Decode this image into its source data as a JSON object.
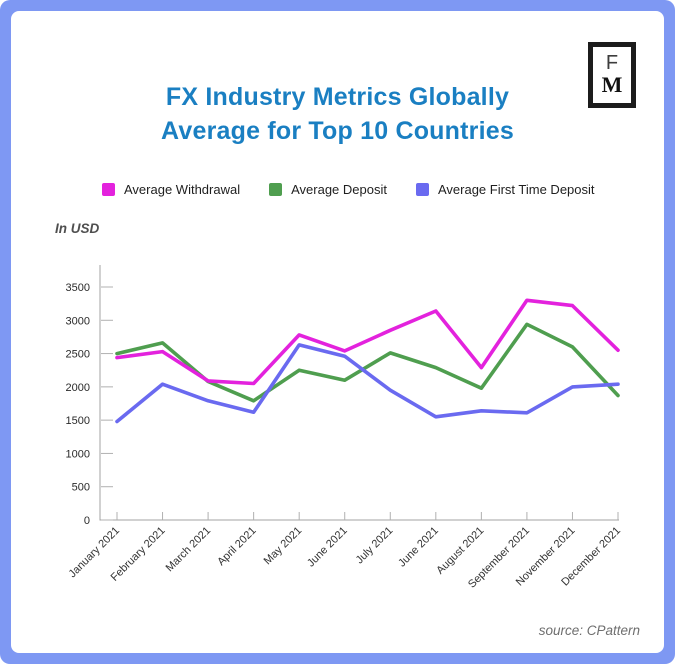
{
  "frame": {
    "border_color": "#7e98f3",
    "card_color": "#ffffff"
  },
  "logo": {
    "top_letter": "F",
    "bottom_letter": "M"
  },
  "header": {
    "title_line1": "FX Industry Metrics Globally",
    "title_line2": "Average for Top 10 Countries",
    "title_color": "#1a7fc2"
  },
  "legend": [
    {
      "label": "Average Withdrawal",
      "color": "#e322dd"
    },
    {
      "label": "Average Deposit",
      "color": "#4f9e4f"
    },
    {
      "label": "Average First Time Deposit",
      "color": "#6a6af0"
    }
  ],
  "units_label": "In USD",
  "source_label": "source: CPattern",
  "chart_data": {
    "type": "line",
    "x": [
      "January 2021",
      "February 2021",
      "March 2021",
      "April 2021",
      "May 2021",
      "June 2021",
      "July 2021",
      "June 2021",
      "August 2021",
      "September 2021",
      "November 2021",
      "December 2021"
    ],
    "series": [
      {
        "name": "Average Withdrawal",
        "color": "#e322dd",
        "values": [
          2440,
          2530,
          2090,
          2050,
          2780,
          2540,
          2850,
          3140,
          2290,
          3300,
          3220,
          2550
        ]
      },
      {
        "name": "Average Deposit",
        "color": "#4f9e4f",
        "values": [
          2500,
          2660,
          2080,
          1790,
          2250,
          2100,
          2510,
          2290,
          1980,
          2940,
          2600,
          1870
        ]
      },
      {
        "name": "Average First Time Deposit",
        "color": "#6a6af0",
        "values": [
          1480,
          2040,
          1790,
          1620,
          2630,
          2460,
          1950,
          1550,
          1640,
          1610,
          2000,
          2040
        ]
      }
    ],
    "ylabel": "In USD",
    "yticks": [
      0,
      500,
      1000,
      1500,
      2000,
      2500,
      3000,
      3500
    ],
    "ylim": [
      0,
      3500
    ],
    "grid": false,
    "legend_position": "top"
  }
}
